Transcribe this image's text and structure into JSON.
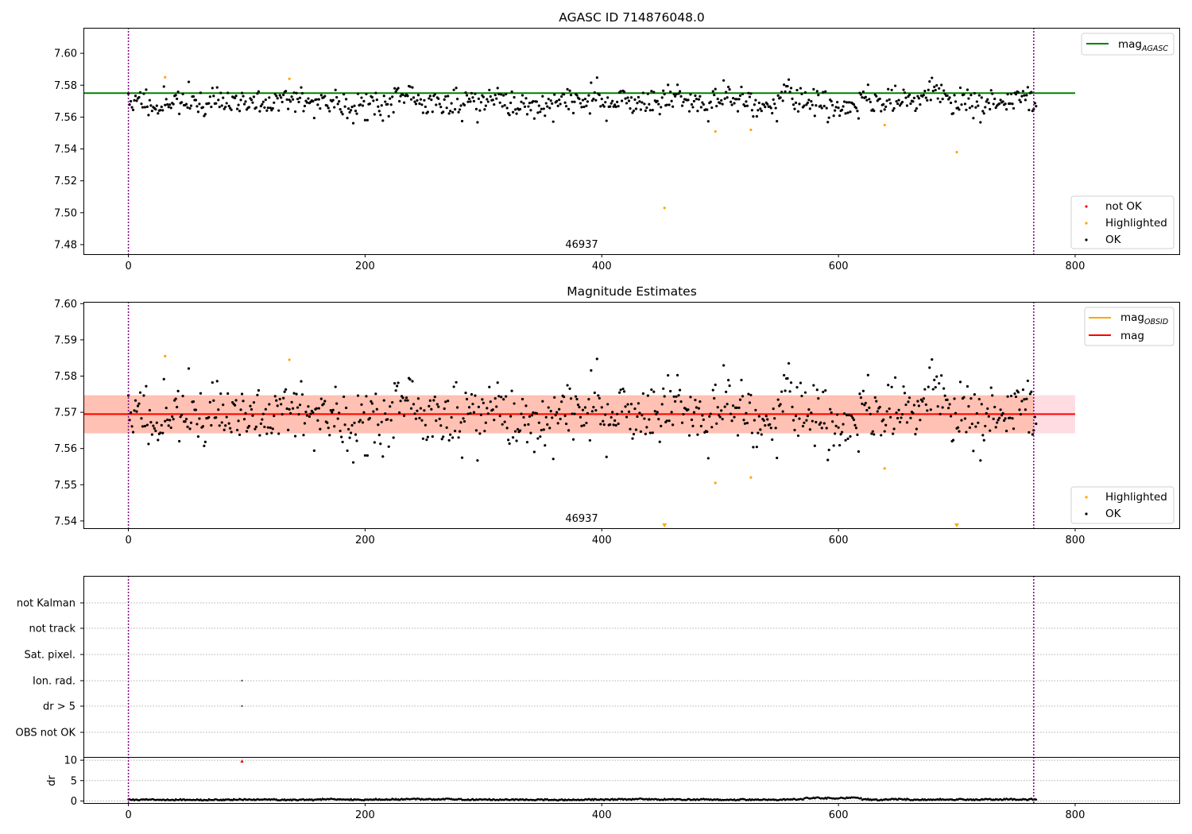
{
  "chart_data": [
    {
      "type": "scatter",
      "title": "AGASC ID 714876048.0",
      "xlim": [
        -38,
        888
      ],
      "ylim": [
        7.474,
        7.616
      ],
      "xticks": [
        0,
        200,
        400,
        600,
        800
      ],
      "yticks": [
        7.48,
        7.5,
        7.52,
        7.54,
        7.56,
        7.58,
        7.6
      ],
      "ytick_labels": [
        "7.48",
        "7.50",
        "7.52",
        "7.54",
        "7.56",
        "7.58",
        "7.60"
      ],
      "obsid_boundaries": [
        0,
        765
      ],
      "obsid_label": "46937",
      "hline": {
        "value": 7.575,
        "x_range": [
          -38,
          800
        ],
        "color": "#008000",
        "label_main": "mag",
        "label_sub": "AGASC"
      },
      "ok_points": {
        "n": 768,
        "mean": 7.5695,
        "noise": 0.005,
        "seed": 11,
        "color": "#000000"
      },
      "highlighted_points": {
        "x": [
          31,
          136,
          453,
          496,
          526,
          639,
          700
        ],
        "y": [
          7.585,
          7.584,
          7.503,
          7.551,
          7.552,
          7.555,
          7.538
        ],
        "color": "#ffa500"
      },
      "legend": {
        "position": "lower-right",
        "entries": [
          "not OK",
          "Highlighted",
          "OK"
        ],
        "colors": [
          "#ff0000",
          "#ffa500",
          "#000000"
        ]
      },
      "upper_legend": {
        "position": "upper-right",
        "entries": [
          "mag"
        ]
      }
    },
    {
      "type": "scatter",
      "title": "Magnitude Estimates",
      "xlim": [
        -38,
        888
      ],
      "ylim": [
        7.538,
        7.6005
      ],
      "xticks": [
        0,
        200,
        400,
        600,
        800
      ],
      "yticks": [
        7.54,
        7.55,
        7.56,
        7.57,
        7.58,
        7.59,
        7.6
      ],
      "ytick_labels": [
        "7.54",
        "7.55",
        "7.56",
        "7.57",
        "7.58",
        "7.59",
        "7.60"
      ],
      "obsid_boundaries": [
        0,
        765
      ],
      "obsid_label": "46937",
      "band_mag": {
        "low": 7.5642,
        "high": 7.5747,
        "x_range": [
          -38,
          800
        ],
        "color": "#ffc0cb"
      },
      "band_obsid": {
        "low": 7.5642,
        "high": 7.5747,
        "x_range": [
          -38,
          765
        ],
        "color": "#ffa07a"
      },
      "line_mag": {
        "value": 7.5695,
        "color": "#ff0000",
        "label": "mag"
      },
      "line_obsid": {
        "value": 7.5695,
        "color": "#ffa500",
        "label_main": "mag",
        "label_sub": "OBSID"
      },
      "ok_points": {
        "n": 768,
        "mean": 7.5695,
        "noise": 0.005,
        "seed": 11,
        "color": "#000000"
      },
      "highlighted_points": {
        "x": [
          31,
          136,
          496,
          526,
          639
        ],
        "y": [
          7.5855,
          7.5845,
          7.5505,
          7.552,
          7.5545
        ],
        "color": "#ffa500"
      },
      "below_range_markers": {
        "x": [
          453,
          700
        ],
        "color": "#ffa500"
      },
      "legend": {
        "position": "lower-right",
        "entries": [
          "Highlighted",
          "OK"
        ],
        "colors": [
          "#ffa500",
          "#000000"
        ]
      },
      "upper_legend": {
        "position": "upper-right",
        "entries": [
          "mag",
          "mag"
        ]
      }
    },
    {
      "type": "scatter",
      "title": "",
      "xlim": [
        -38,
        888
      ],
      "xticks": [
        0,
        200,
        400,
        600,
        800
      ],
      "flag_labels": [
        "not Kalman",
        "not track",
        "Sat. pixel.",
        "Ion. rad.",
        "dr > 5",
        "OBS not OK"
      ],
      "flag_points": [
        {
          "flag": "Ion. rad.",
          "x": 96
        },
        {
          "flag": "dr > 5",
          "x": 96
        }
      ],
      "obsid_boundaries": [
        0,
        765
      ]
    },
    {
      "type": "scatter",
      "title": "",
      "ylabel": "dr",
      "xlim": [
        -38,
        888
      ],
      "ylim": [
        -0.5,
        10.8
      ],
      "xticks": [
        0,
        200,
        400,
        600,
        800
      ],
      "yticks": [
        0,
        5,
        10
      ],
      "ytick_labels": [
        "0",
        "5",
        "10"
      ],
      "dr_points": {
        "n": 768,
        "base": 0.35,
        "spread": 0.3,
        "seed": 5,
        "color": "#000000"
      },
      "outlier": {
        "x": 96,
        "y": 9.8,
        "color": "#ff0000"
      },
      "obsid_boundaries": [
        0,
        765
      ]
    }
  ]
}
